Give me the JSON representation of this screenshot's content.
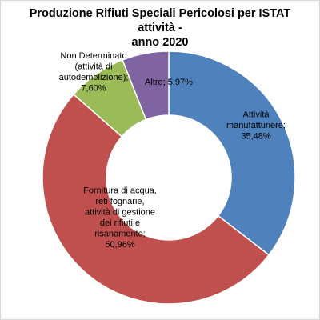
{
  "chart_data": {
    "type": "pie",
    "title_lines": [
      "Produzione Rifiuti Speciali Pericolosi per ISTAT attività -",
      "anno 2020"
    ],
    "slices": [
      {
        "label_lines": [
          "Attività",
          "manufatturiere;",
          "35,48%"
        ],
        "value": 35.48,
        "color": "#4f81bd"
      },
      {
        "label_lines": [
          "Fornitura di acqua,",
          "reti fognarie,",
          "attività di gestione",
          "dei rifiuti e",
          "risanamento;",
          "50,96%"
        ],
        "value": 50.96,
        "color": "#c0504d"
      },
      {
        "label_lines": [
          "Non Determinato",
          "(attività di",
          "autodemolizione);",
          "7,60%"
        ],
        "value": 7.6,
        "color": "#9bbb59"
      },
      {
        "label_lines": [
          "Altro; 5,97%"
        ],
        "value": 5.97,
        "color": "#8064a2"
      }
    ]
  }
}
